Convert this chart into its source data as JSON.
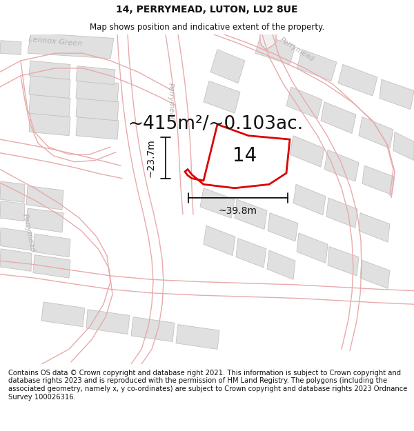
{
  "title": "14, PERRYMEAD, LUTON, LU2 8UE",
  "subtitle": "Map shows position and indicative extent of the property.",
  "area_text": "~415m²/~0.103ac.",
  "width_label": "~39.8m",
  "height_label": "~23.7m",
  "number_label": "14",
  "footer_text": "Contains OS data © Crown copyright and database right 2021. This information is subject to Crown copyright and database rights 2023 and is reproduced with the permission of HM Land Registry. The polygons (including the associated geometry, namely x, y co-ordinates) are subject to Crown copyright and database rights 2023 Ordnance Survey 100026316.",
  "bg_color": "#ffffff",
  "map_bg": "#ffffff",
  "road_line_color": "#e8aaaa",
  "building_fill": "#e0e0e0",
  "building_outline": "#c8c0c0",
  "road_area_fill": "#f5f5f5",
  "highlight_fill": "#ffffff",
  "highlight_outline": "#dd0000",
  "street_label_color": "#b8b0b0",
  "dim_color": "#111111",
  "title_fontsize": 10,
  "subtitle_fontsize": 8.5,
  "area_fontsize": 19,
  "label_fontsize": 10,
  "number_fontsize": 20,
  "footer_fontsize": 7.2
}
